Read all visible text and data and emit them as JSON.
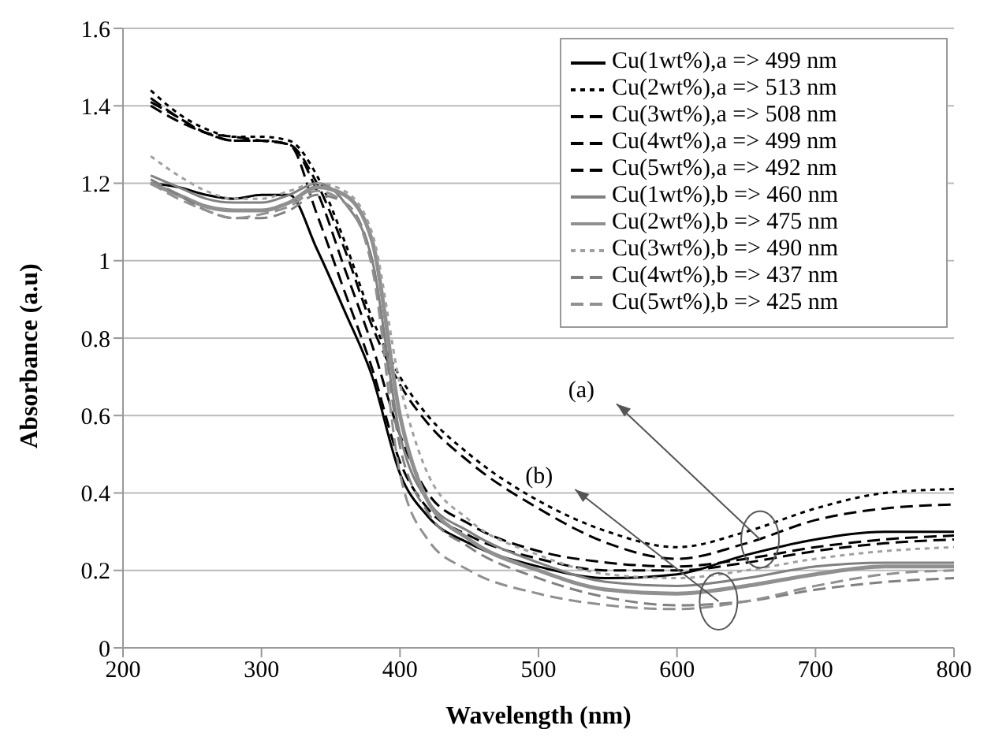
{
  "chart_data": {
    "type": "line",
    "xlabel": "Wavelength (nm)",
    "ylabel": "Absorbance (a.u)",
    "x": [
      220,
      240,
      260,
      280,
      300,
      320,
      340,
      360,
      380,
      400,
      420,
      450,
      500,
      550,
      600,
      650,
      700,
      750,
      800
    ],
    "series": [
      {
        "name": "Cu(1wt%),a => 499 nm",
        "color": "#000000",
        "line_style": "solid",
        "values": [
          1.2,
          1.19,
          1.17,
          1.16,
          1.17,
          1.17,
          1.03,
          0.87,
          0.7,
          0.45,
          0.34,
          0.27,
          0.21,
          0.18,
          0.19,
          0.24,
          0.28,
          0.3,
          0.3
        ]
      },
      {
        "name": "Cu(2wt%),a => 513 nm",
        "color": "#000000",
        "line_style": "dotted",
        "values": [
          1.44,
          1.38,
          1.34,
          1.32,
          1.32,
          1.31,
          1.22,
          1.05,
          0.85,
          0.7,
          0.6,
          0.5,
          0.38,
          0.3,
          0.26,
          0.3,
          0.36,
          0.4,
          0.41
        ]
      },
      {
        "name": "Cu(3wt%),a => 508 nm",
        "color": "#000000",
        "line_style": "dashed",
        "values": [
          1.42,
          1.37,
          1.33,
          1.31,
          1.31,
          1.3,
          1.2,
          1.03,
          0.83,
          0.68,
          0.58,
          0.48,
          0.36,
          0.27,
          0.23,
          0.27,
          0.33,
          0.36,
          0.37
        ]
      },
      {
        "name": "Cu(4wt%),a => 499 nm",
        "color": "#000000",
        "line_style": "dashed",
        "values": [
          1.4,
          1.36,
          1.33,
          1.31,
          1.31,
          1.3,
          1.12,
          0.92,
          0.72,
          0.48,
          0.36,
          0.29,
          0.23,
          0.2,
          0.2,
          0.22,
          0.25,
          0.27,
          0.28
        ]
      },
      {
        "name": "Cu(5wt%),a => 492 nm",
        "color": "#000000",
        "line_style": "dashed",
        "values": [
          1.41,
          1.37,
          1.33,
          1.32,
          1.31,
          1.3,
          1.18,
          0.98,
          0.78,
          0.55,
          0.4,
          0.32,
          0.25,
          0.22,
          0.21,
          0.23,
          0.26,
          0.28,
          0.29
        ]
      },
      {
        "name": "Cu(1wt%),b => 460 nm",
        "color": "#808080",
        "line_style": "solid",
        "values": [
          1.22,
          1.19,
          1.16,
          1.15,
          1.15,
          1.17,
          1.2,
          1.15,
          1.0,
          0.55,
          0.38,
          0.3,
          0.22,
          0.17,
          0.16,
          0.18,
          0.21,
          0.22,
          0.22
        ]
      },
      {
        "name": "Cu(2wt%),b => 475 nm",
        "color": "#909090",
        "line_style": "solid",
        "values": [
          1.2,
          1.17,
          1.14,
          1.13,
          1.13,
          1.15,
          1.19,
          1.17,
          1.05,
          0.6,
          0.38,
          0.28,
          0.2,
          0.15,
          0.14,
          0.16,
          0.19,
          0.21,
          0.21
        ]
      },
      {
        "name": "Cu(3wt%),b => 490 nm",
        "color": "#a0a0a0",
        "line_style": "dotted",
        "values": [
          1.27,
          1.22,
          1.18,
          1.16,
          1.16,
          1.18,
          1.2,
          1.18,
          1.07,
          0.68,
          0.45,
          0.33,
          0.24,
          0.19,
          0.18,
          0.2,
          0.23,
          0.25,
          0.26
        ]
      },
      {
        "name": "Cu(4wt%),b => 437 nm",
        "color": "#808080",
        "line_style": "dashed",
        "values": [
          1.21,
          1.17,
          1.13,
          1.11,
          1.11,
          1.13,
          1.17,
          1.15,
          1.0,
          0.52,
          0.35,
          0.26,
          0.18,
          0.13,
          0.11,
          0.12,
          0.15,
          0.17,
          0.18
        ]
      },
      {
        "name": "Cu(5wt%),b => 425 nm",
        "color": "#909090",
        "line_style": "dashed",
        "values": [
          1.2,
          1.16,
          1.13,
          1.11,
          1.12,
          1.14,
          1.18,
          1.15,
          0.98,
          0.45,
          0.28,
          0.2,
          0.14,
          0.11,
          0.1,
          0.12,
          0.16,
          0.19,
          0.2
        ]
      }
    ],
    "annotations": [
      {
        "text": "(a)",
        "x": 660,
        "y": 0.28
      },
      {
        "text": "(b)",
        "x": 630,
        "y": 0.12
      }
    ],
    "xlim": [
      200,
      800
    ],
    "xticks": [
      200,
      300,
      400,
      500,
      600,
      700,
      800
    ],
    "ylim": [
      0,
      1.6
    ],
    "yticks": [
      0,
      0.2,
      0.4,
      0.6,
      0.8,
      1,
      1.2,
      1.4,
      1.6
    ],
    "grid": "y",
    "legend": "top right"
  }
}
